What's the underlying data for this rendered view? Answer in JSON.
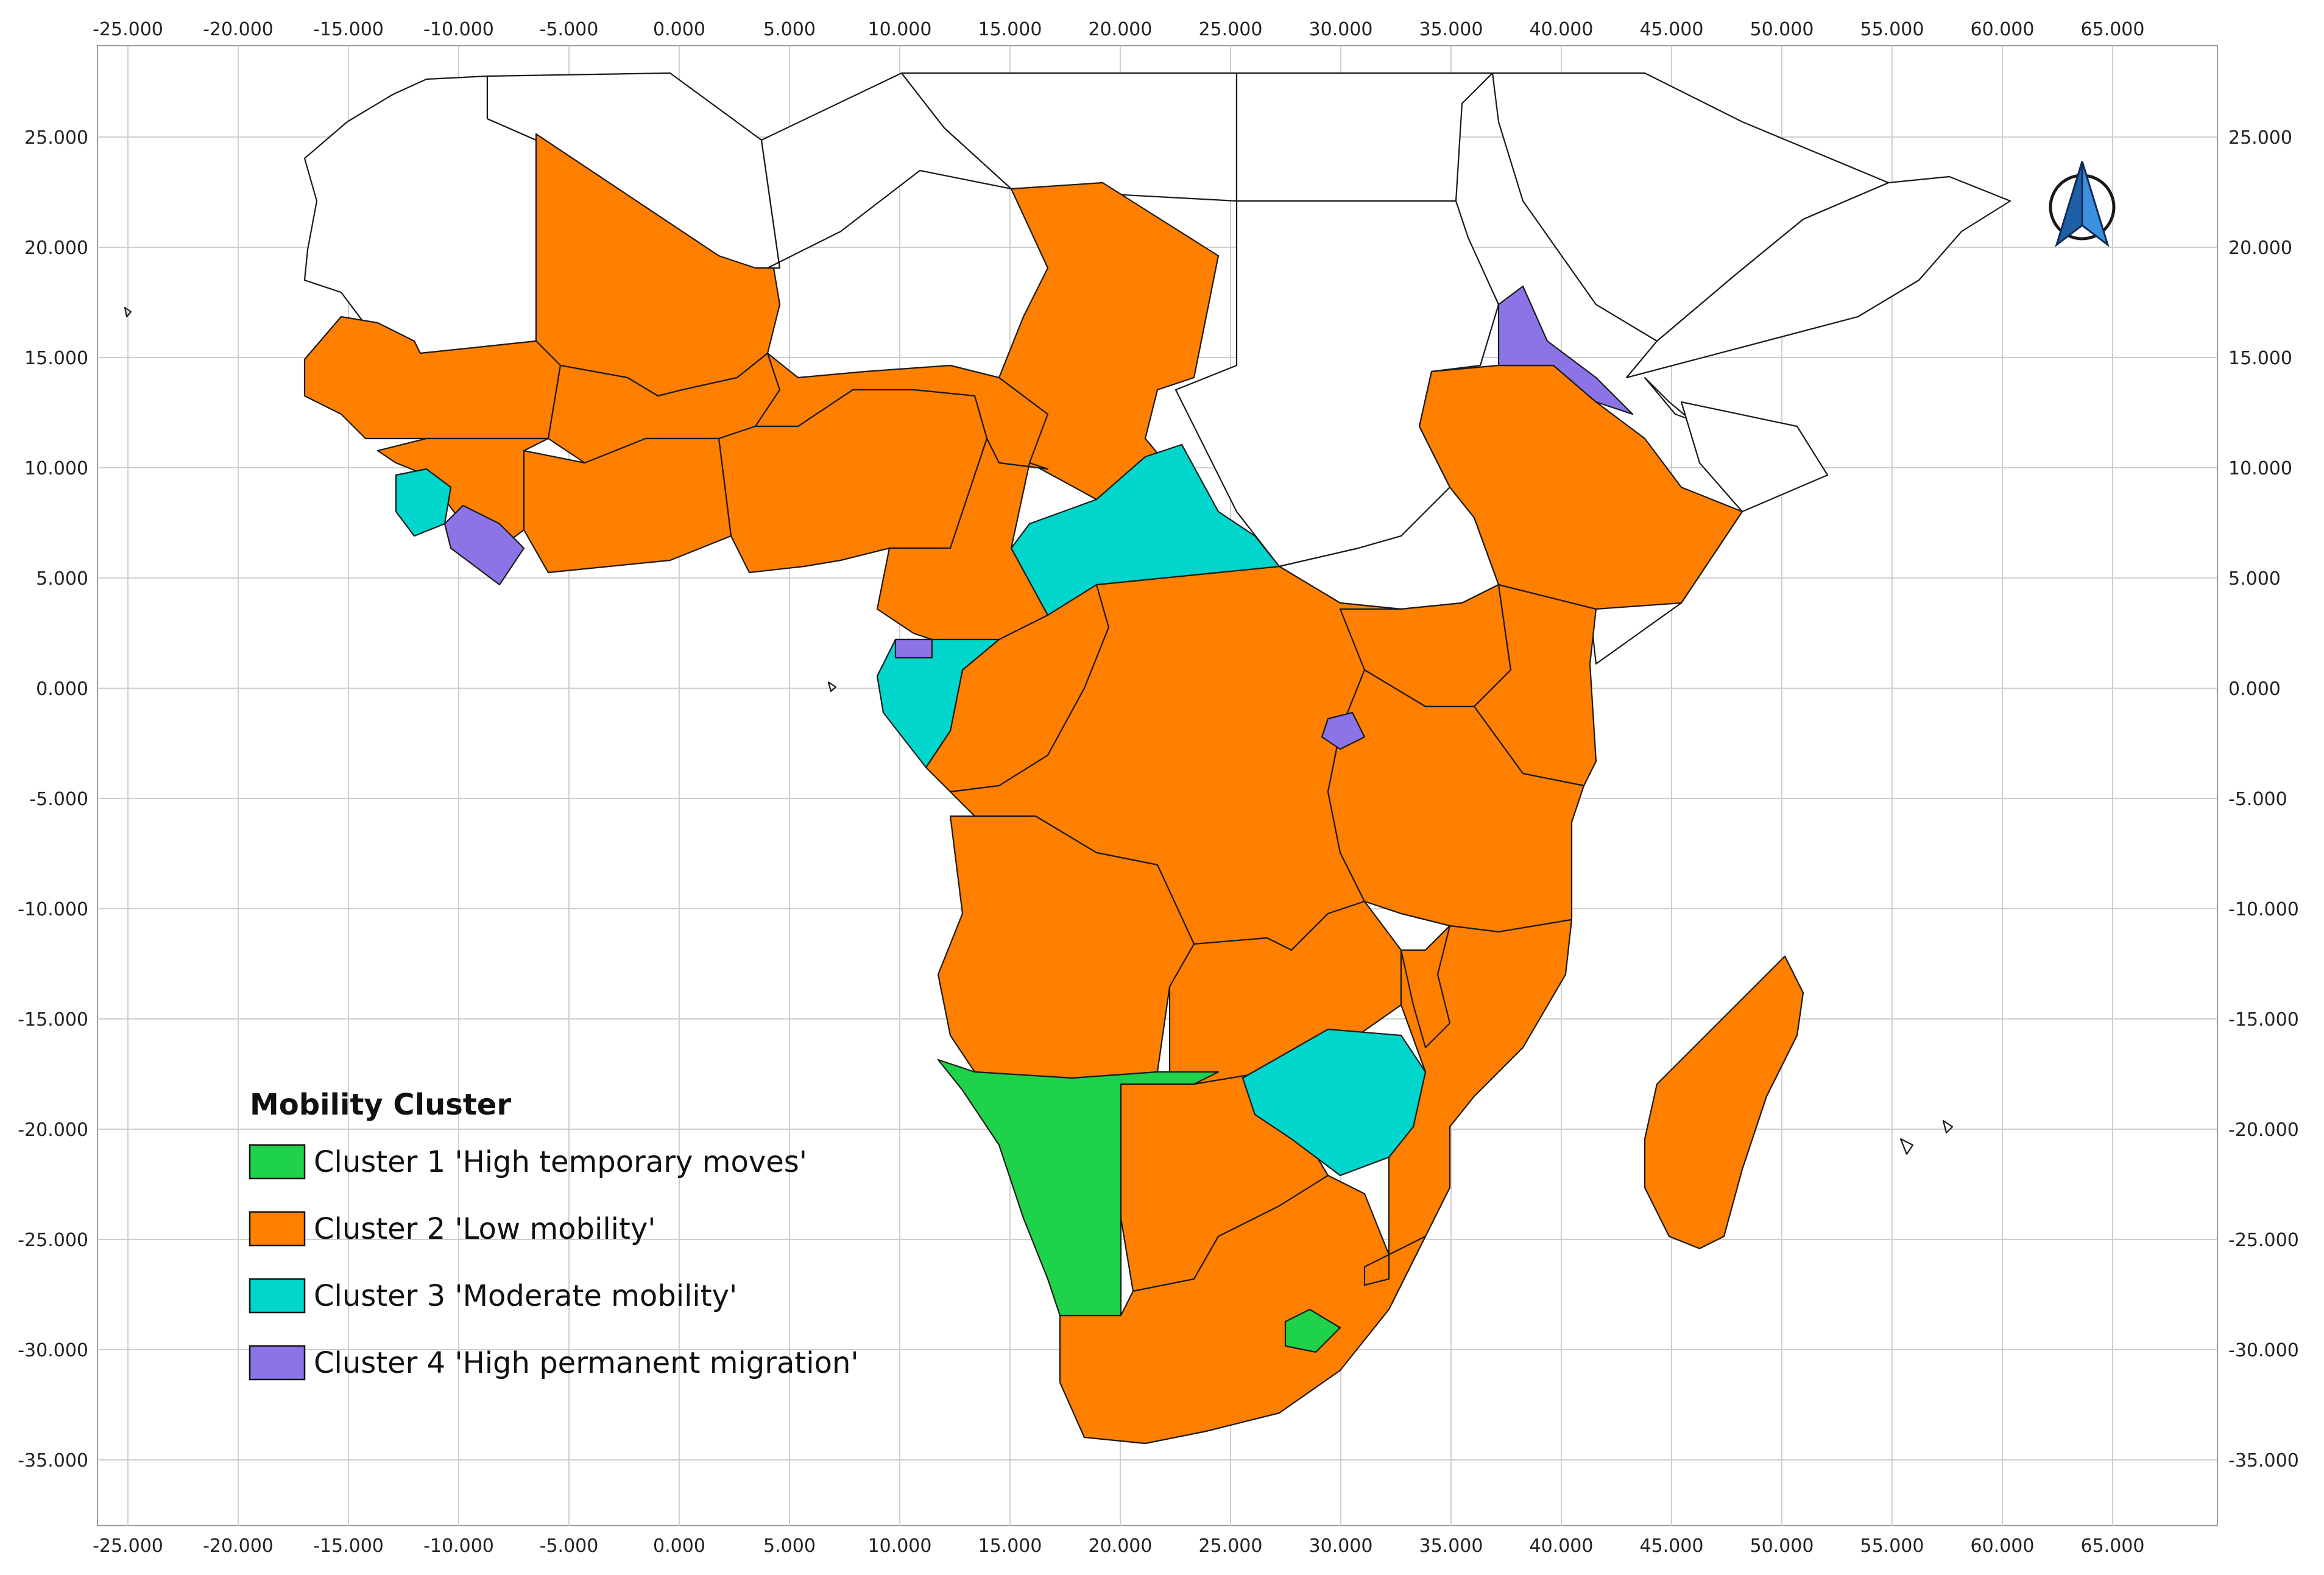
{
  "map": {
    "axes": {
      "x_ticks": [
        "-25.000",
        "-20.000",
        "-15.000",
        "-10.000",
        "-5.000",
        "0.000",
        "5.000",
        "10.000",
        "15.000",
        "20.000",
        "25.000",
        "30.000",
        "35.000",
        "40.000",
        "45.000",
        "50.000",
        "55.000",
        "60.000",
        "65.000"
      ],
      "y_ticks": [
        "25.000",
        "20.000",
        "15.000",
        "10.000",
        "5.000",
        "0.000",
        "-5.000",
        "-10.000",
        "-15.000",
        "-20.000",
        "-25.000",
        "-30.000",
        "-35.000"
      ]
    },
    "legend": {
      "title": "Mobility Cluster",
      "items": [
        {
          "label": "Cluster 1 'High temporary moves'",
          "color": "#1ed24a"
        },
        {
          "label": "Cluster 2 'Low mobility'",
          "color": "#ff7f00"
        },
        {
          "label": "Cluster 3 'Moderate mobility'",
          "color": "#00d6cc"
        },
        {
          "label": "Cluster 4 'High permanent migration'",
          "color": "#8c73e6"
        }
      ]
    },
    "north_arrow_icon": "north-arrow-icon"
  }
}
